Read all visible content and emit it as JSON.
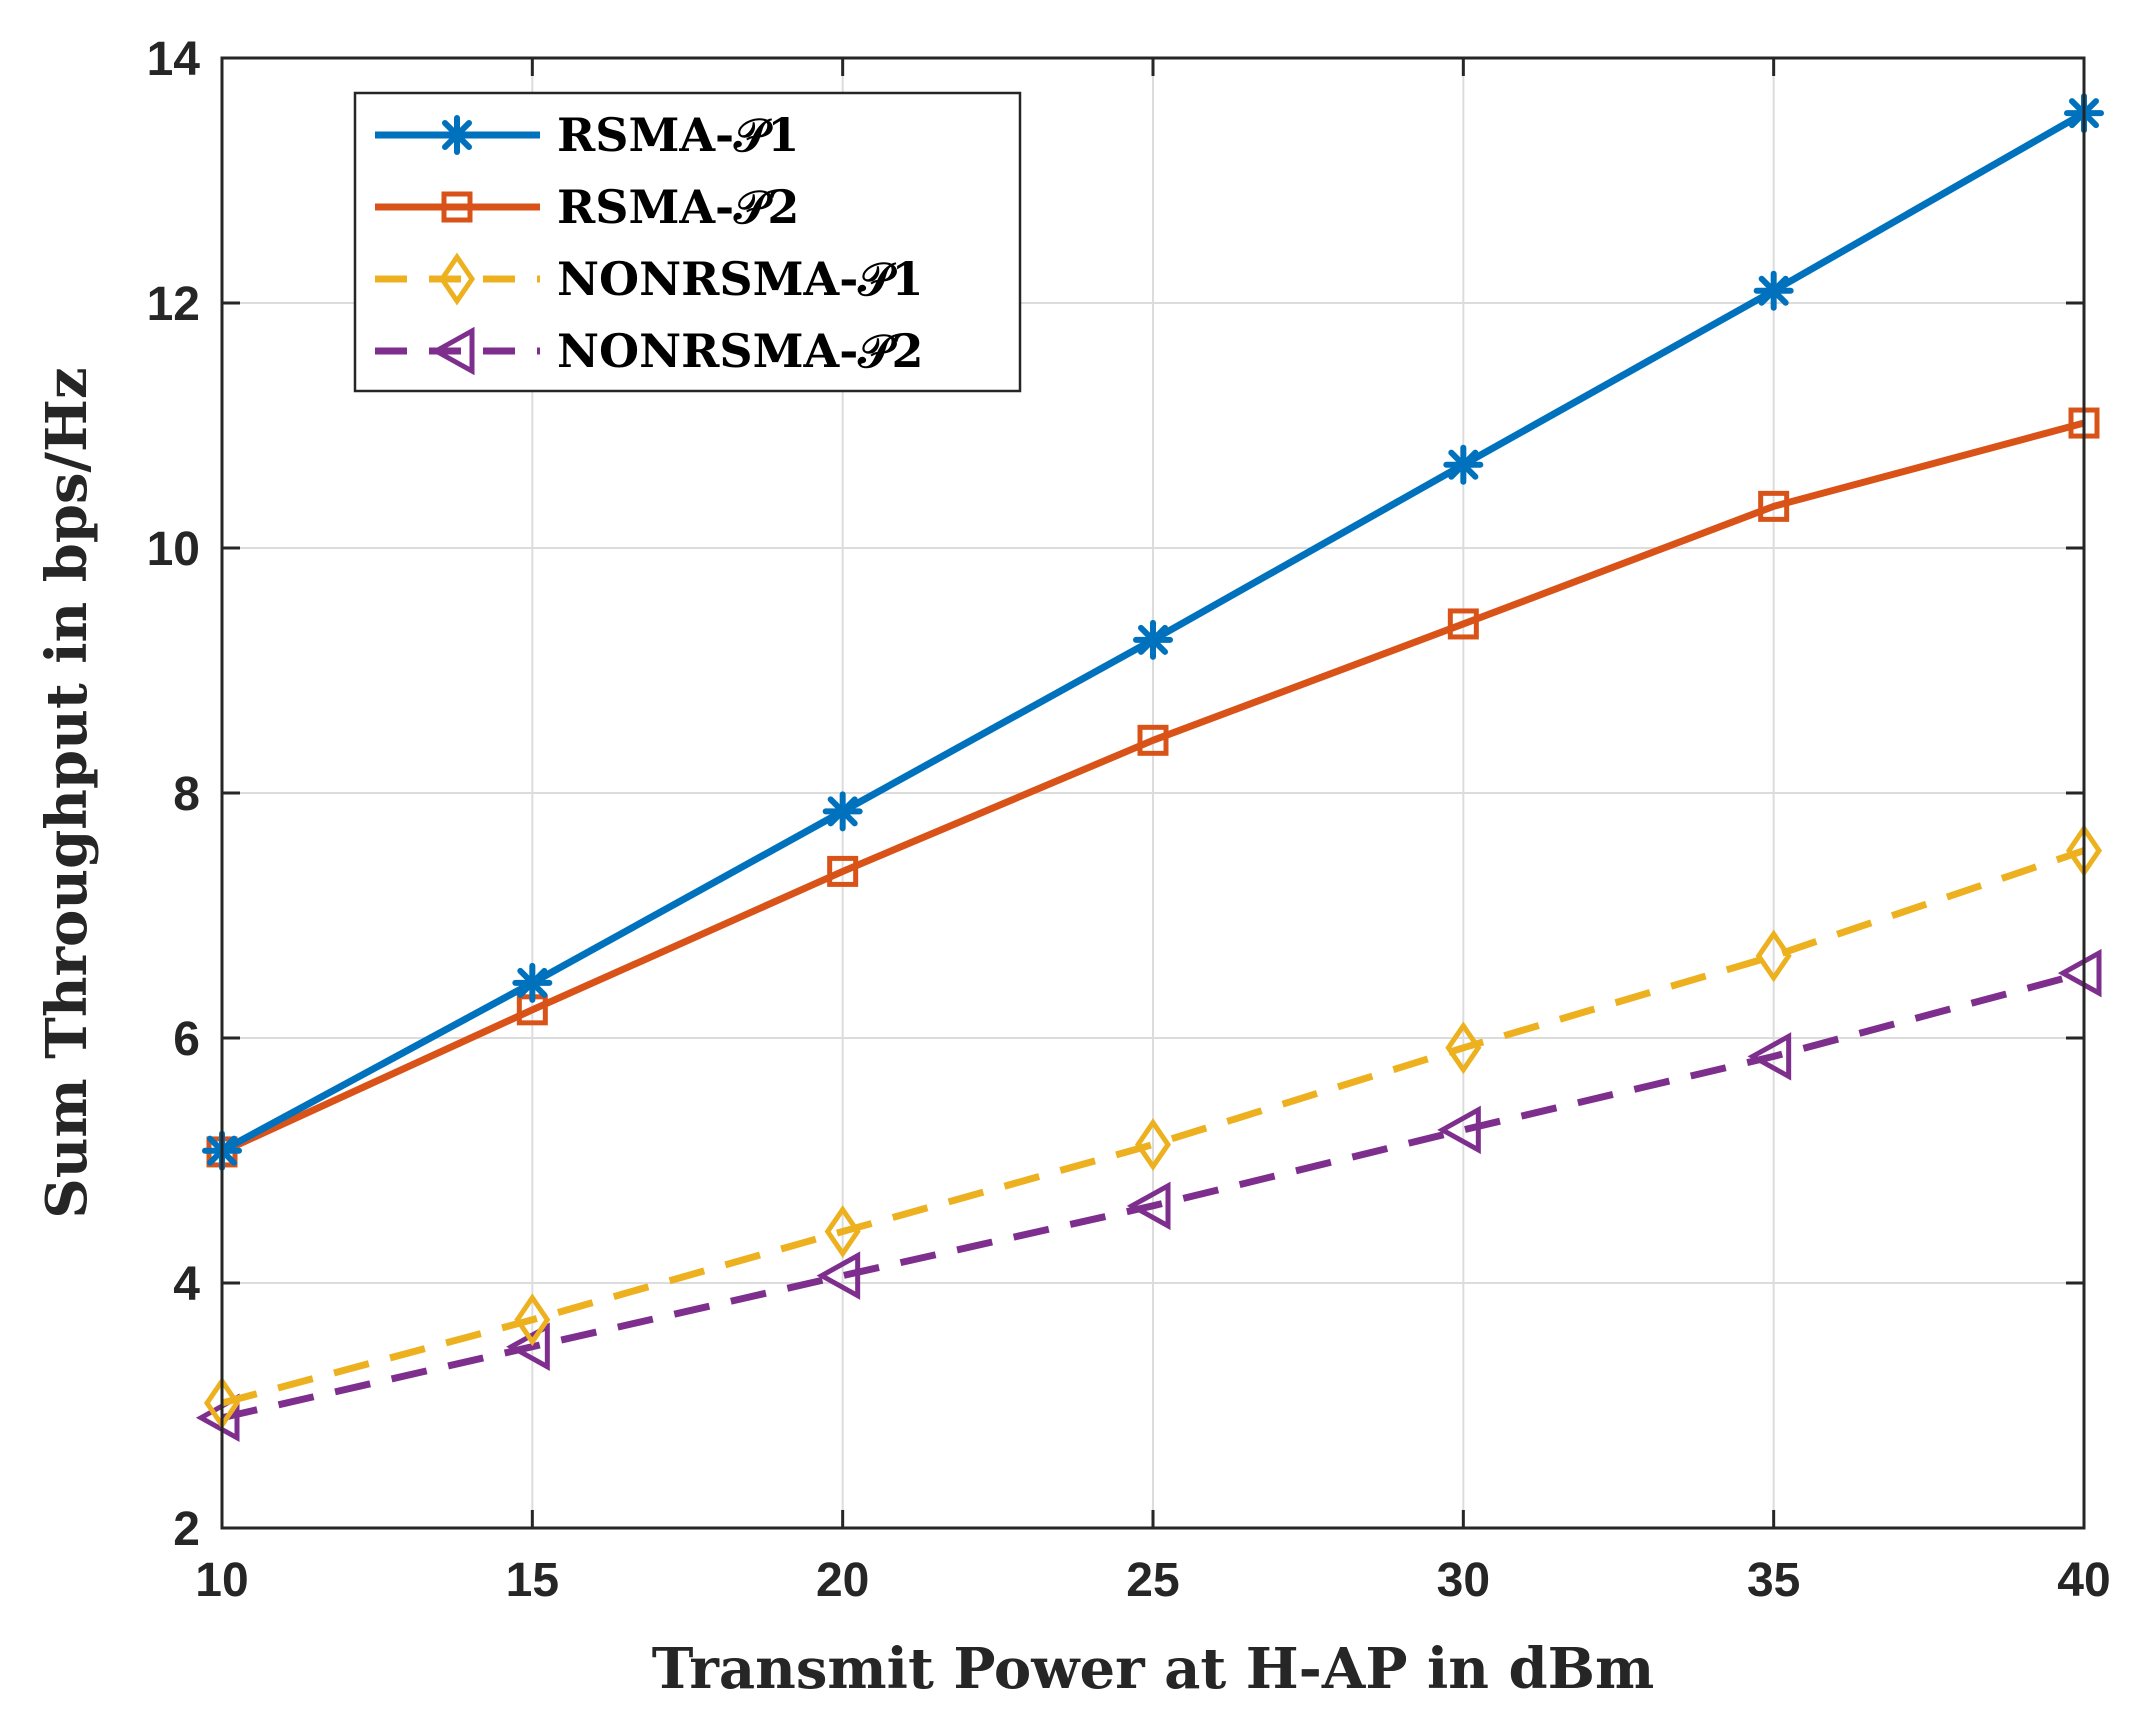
{
  "chart_data": {
    "type": "line",
    "title": "",
    "xlabel": "Transmit Power at H-AP in dBm",
    "ylabel": "Sum Throughput in bps/Hz",
    "xlim": [
      10,
      40
    ],
    "ylim": [
      2,
      14
    ],
    "xticks": [
      10,
      15,
      20,
      25,
      30,
      35,
      40
    ],
    "yticks": [
      2,
      4,
      6,
      8,
      10,
      12,
      14
    ],
    "grid": true,
    "legend_position": "top-left",
    "x": [
      10,
      15,
      20,
      25,
      30,
      35,
      40
    ],
    "series": [
      {
        "name": "RSMA-𝒫1",
        "color": "#0072BD",
        "line": "solid",
        "marker": "asterisk",
        "values": [
          5.08,
          6.45,
          7.85,
          9.25,
          10.68,
          12.1,
          13.55
        ]
      },
      {
        "name": "RSMA-𝒫2",
        "color": "#D95319",
        "line": "solid",
        "marker": "square",
        "values": [
          5.07,
          6.23,
          7.36,
          8.43,
          9.38,
          10.34,
          11.02
        ]
      },
      {
        "name": "NONRSMA-𝒫1",
        "color": "#EDB120",
        "line": "dashed",
        "marker": "diamond",
        "values": [
          3.02,
          3.7,
          4.42,
          5.13,
          5.92,
          6.67,
          7.53
        ]
      },
      {
        "name": "NONRSMA-𝒫2",
        "color": "#7E2F8E",
        "line": "dashed",
        "marker": "triangle-left",
        "values": [
          2.9,
          3.48,
          4.06,
          4.63,
          5.25,
          5.85,
          6.53
        ]
      }
    ]
  }
}
